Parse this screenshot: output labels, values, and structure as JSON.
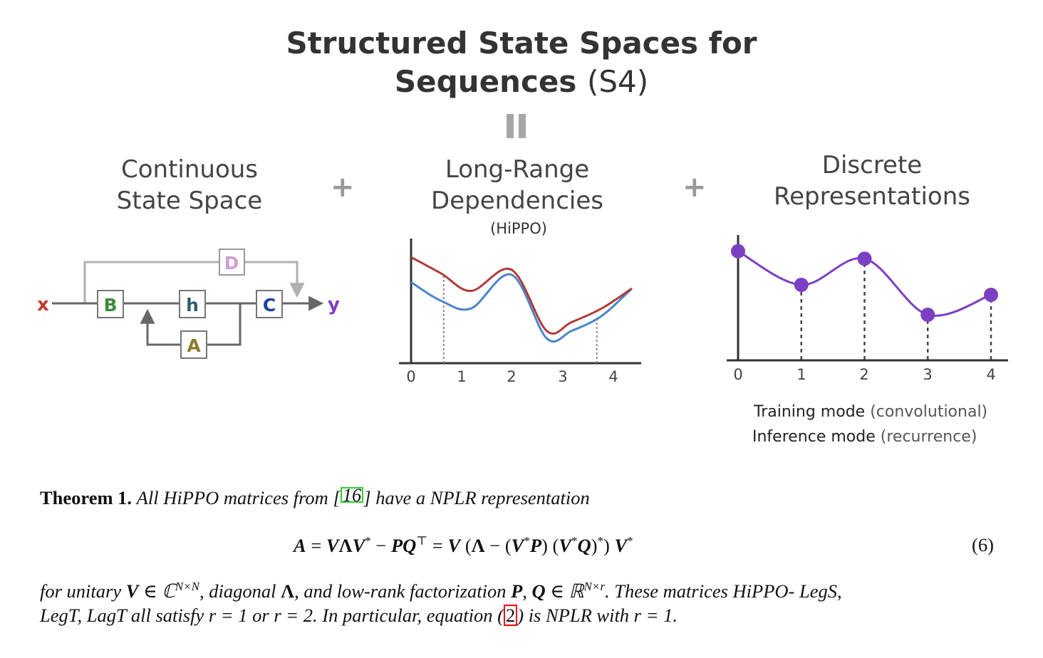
{
  "figure": {
    "title_bold_line1": "Structured State Spaces for",
    "title_bold_line2": "Sequences",
    "title_light": "(S4)",
    "equals_sign": "=",
    "plus_sign": "+",
    "panel1": {
      "title_line1": "Continuous",
      "title_line2": "State Space"
    },
    "panel2": {
      "title_line1": "Long-Range",
      "title_line2": "Dependencies",
      "subtitle": "(HiPPO)"
    },
    "panel3": {
      "title_line1": "Discrete",
      "title_line2": "Representations"
    },
    "diagram": {
      "input": "x",
      "output": "y",
      "blocks": [
        "B",
        "h",
        "C",
        "A",
        "D"
      ],
      "colors": {
        "x": "#c0392b",
        "y": "#7b3fc4",
        "B": "#3c8d3c",
        "h": "#2c5e6e",
        "C": "#1a3fa0",
        "A": "#8a7d2a",
        "D": "#cfa0d0",
        "wire": "#666666",
        "skip_wire": "#b0b0b0"
      }
    },
    "modes": {
      "line1_bold": "Training mode",
      "line1_paren": "(convolutional)",
      "line2_bold": "Inference mode",
      "line2_paren": "(recurrence)"
    }
  },
  "chart_data": [
    {
      "type": "line",
      "xlim": [
        0,
        4.4
      ],
      "x_ticks": [
        "0",
        "1",
        "2",
        "3",
        "4"
      ],
      "grid": false,
      "series": [
        {
          "color": "#b03a3a",
          "x": [
            0,
            0.6,
            1.2,
            2,
            2.7,
            3.2,
            3.8,
            4.4
          ],
          "y": [
            0.85,
            0.72,
            0.58,
            0.75,
            0.26,
            0.33,
            0.44,
            0.6
          ]
        },
        {
          "color": "#4a86c8",
          "x": [
            0,
            0.6,
            1.2,
            2,
            2.7,
            3.2,
            3.8,
            4.4
          ],
          "y": [
            0.65,
            0.5,
            0.44,
            0.71,
            0.2,
            0.26,
            0.38,
            0.6
          ]
        }
      ],
      "vlines": [
        0.65,
        3.7
      ]
    },
    {
      "type": "line",
      "xlim": [
        0,
        4.2
      ],
      "x_ticks": [
        "0",
        "1",
        "2",
        "3",
        "4"
      ],
      "grid": false,
      "series": [
        {
          "color": "#7b3fc4",
          "x": [
            0,
            1,
            2,
            3,
            4
          ],
          "y": [
            0.87,
            0.6,
            0.81,
            0.36,
            0.52
          ]
        }
      ]
    }
  ],
  "theorem": {
    "label": "Theorem 1.",
    "text1": "All HiPPO matrices from",
    "ref1": "16",
    "text2": "have a NPLR representation",
    "eq_number": "(6)",
    "line3": "for unitary V ∈ ℂ",
    "text4": "These matrices HiPPO- LegS,",
    "line4a": "LegT, LagT all satisfy r = 1  or r = 2.  In particular, equation",
    "ref2": "2",
    "line4b": "is NPLR with r = 1."
  }
}
